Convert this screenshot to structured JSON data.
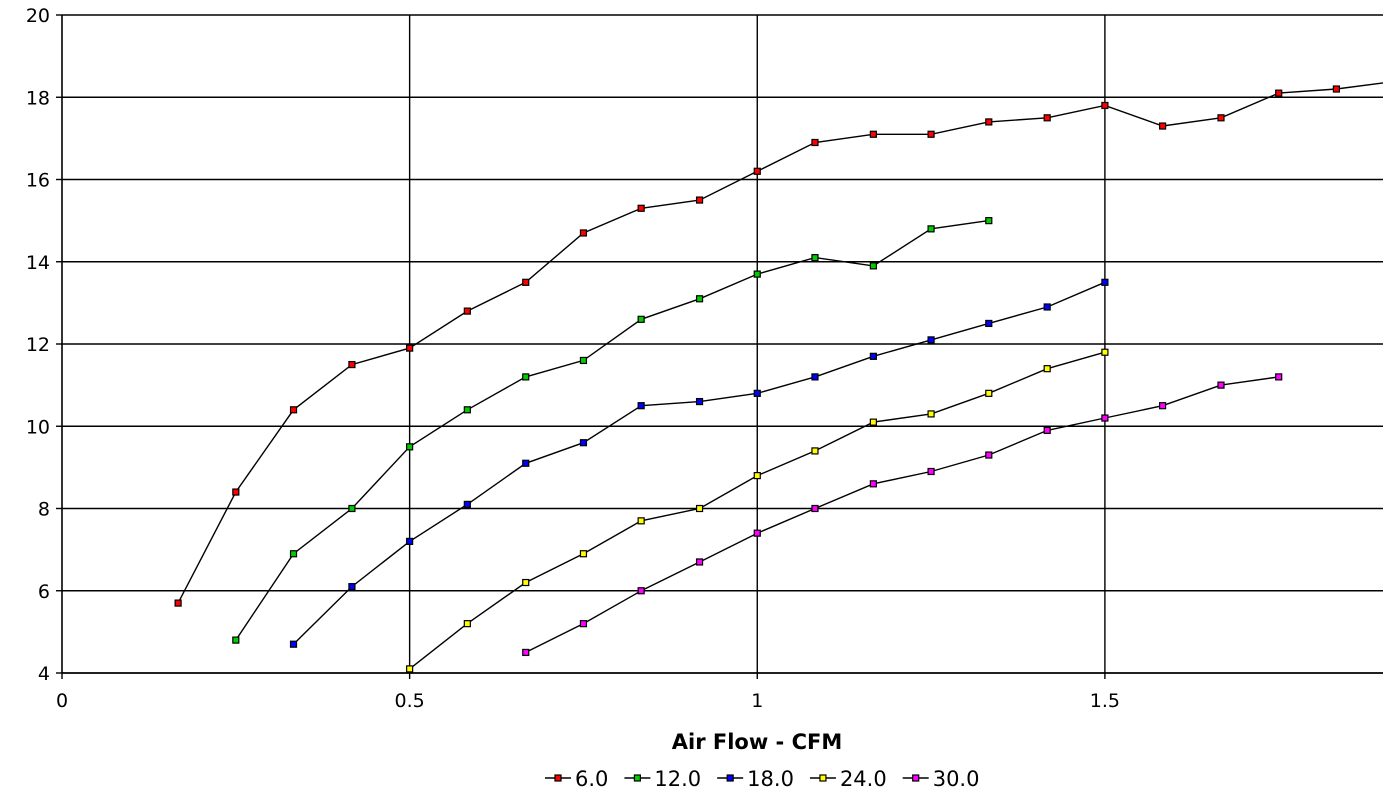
{
  "chart_data": {
    "type": "line",
    "title": "",
    "xlabel": "Air Flow - CFM",
    "ylabel": "",
    "xlim": [
      0,
      1.9
    ],
    "ylim": [
      4,
      20
    ],
    "x_ticks": [
      0,
      0.5,
      1,
      1.5
    ],
    "x_tick_labels": [
      "0",
      "0.5",
      "1",
      "1.5"
    ],
    "y_ticks": [
      4,
      6,
      8,
      10,
      12,
      14,
      16,
      18,
      20
    ],
    "y_tick_labels": [
      "4",
      "6",
      "8",
      "10",
      "12",
      "14",
      "16",
      "18",
      "20"
    ],
    "grid": "major",
    "legend_position": "bottom",
    "line_color": "#000000",
    "series": [
      {
        "name": "6.0",
        "marker_color": "#ff0000",
        "x": [
          0.167,
          0.25,
          0.333,
          0.417,
          0.5,
          0.583,
          0.667,
          0.75,
          0.833,
          0.917,
          1.0,
          1.083,
          1.167,
          1.25,
          1.333,
          1.417,
          1.5,
          1.583,
          1.667,
          1.75,
          1.833,
          1.9
        ],
        "y": [
          5.7,
          8.4,
          10.4,
          11.5,
          11.9,
          12.8,
          13.5,
          14.7,
          15.3,
          15.5,
          16.2,
          16.9,
          17.1,
          17.1,
          17.4,
          17.5,
          17.8,
          17.3,
          17.5,
          18.1,
          18.2,
          18.35
        ]
      },
      {
        "name": "12.0",
        "marker_color": "#00cc00",
        "x": [
          0.25,
          0.333,
          0.417,
          0.5,
          0.583,
          0.667,
          0.75,
          0.833,
          0.917,
          1.0,
          1.083,
          1.167,
          1.25,
          1.333
        ],
        "y": [
          4.8,
          6.9,
          8.0,
          9.5,
          10.4,
          11.2,
          11.6,
          12.6,
          13.1,
          13.7,
          14.1,
          13.9,
          14.8,
          15.0
        ]
      },
      {
        "name": "18.0",
        "marker_color": "#0000ff",
        "x": [
          0.333,
          0.417,
          0.5,
          0.583,
          0.667,
          0.75,
          0.833,
          0.917,
          1.0,
          1.083,
          1.167,
          1.25,
          1.333,
          1.417,
          1.5
        ],
        "y": [
          4.7,
          6.1,
          7.2,
          8.1,
          9.1,
          9.6,
          10.5,
          10.6,
          10.8,
          11.2,
          11.7,
          12.1,
          12.5,
          12.9,
          13.5
        ]
      },
      {
        "name": "24.0",
        "marker_color": "#ffff00",
        "x": [
          0.5,
          0.583,
          0.667,
          0.75,
          0.833,
          0.917,
          1.0,
          1.083,
          1.167,
          1.25,
          1.333,
          1.417,
          1.5
        ],
        "y": [
          4.1,
          5.2,
          6.2,
          6.9,
          7.7,
          8.0,
          8.8,
          9.4,
          10.1,
          10.3,
          10.8,
          11.4,
          11.8
        ]
      },
      {
        "name": "30.0",
        "marker_color": "#ff00ff",
        "x": [
          0.667,
          0.75,
          0.833,
          0.917,
          1.0,
          1.083,
          1.167,
          1.25,
          1.333,
          1.417,
          1.5,
          1.583,
          1.667,
          1.75
        ],
        "y": [
          4.5,
          5.2,
          6.0,
          6.7,
          7.4,
          8.0,
          8.6,
          8.9,
          9.3,
          9.9,
          10.2,
          10.5,
          11.0,
          11.2
        ]
      }
    ]
  }
}
